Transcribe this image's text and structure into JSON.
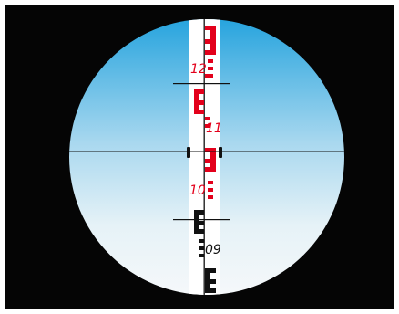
{
  "colors": {
    "surround": "#050505",
    "sky_top": "#2aa8e0",
    "sky_bottom": "#f4f8fa",
    "staff_face": "#ffffff",
    "red_graduation": "#e3001b",
    "black_graduation": "#111111",
    "crosshair": "#111111"
  },
  "staff": {
    "labels": [
      {
        "id": "12",
        "text": "12",
        "color": "red"
      },
      {
        "id": "11",
        "text": "11",
        "color": "red"
      },
      {
        "id": "10",
        "text": "10",
        "color": "red"
      },
      {
        "id": "09",
        "text": "09",
        "color": "black"
      }
    ]
  }
}
